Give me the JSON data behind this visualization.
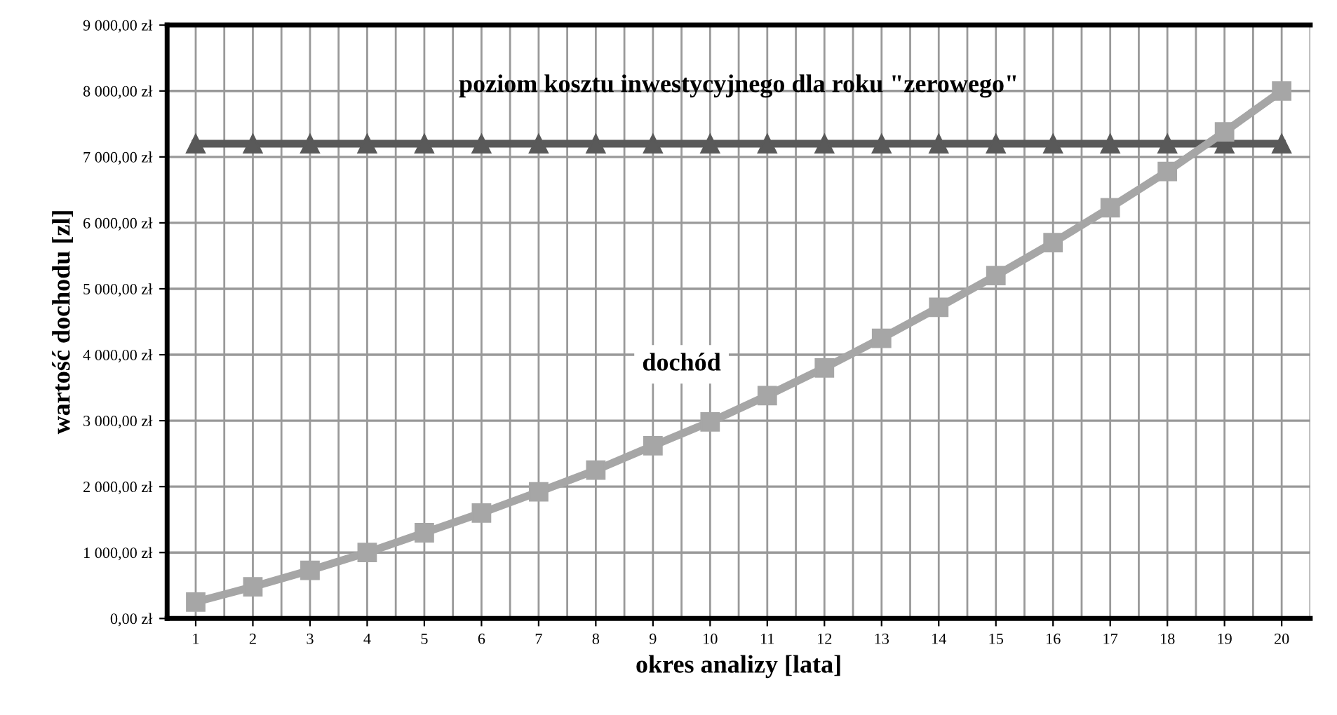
{
  "chart_data": {
    "type": "line",
    "xlabel": "okres analizy [lata]",
    "ylabel": "wartość dochodu [zl]",
    "categories": [
      "1",
      "2",
      "3",
      "4",
      "5",
      "6",
      "7",
      "8",
      "9",
      "10",
      "11",
      "12",
      "13",
      "14",
      "15",
      "16",
      "17",
      "18",
      "19",
      "20"
    ],
    "series": [
      {
        "name": "poziom kosztu inwestycyjnego dla roku \"zerowego\"",
        "color": "#595959",
        "marker": "triangle",
        "values": [
          7200,
          7200,
          7200,
          7200,
          7200,
          7200,
          7200,
          7200,
          7200,
          7200,
          7200,
          7200,
          7200,
          7200,
          7200,
          7200,
          7200,
          7200,
          7200,
          7200
        ]
      },
      {
        "name": "dochód",
        "color": "#a6a6a6",
        "marker": "square",
        "values": [
          250,
          480,
          730,
          1000,
          1300,
          1600,
          1920,
          2250,
          2620,
          2980,
          3380,
          3800,
          4250,
          4720,
          5200,
          5700,
          6230,
          6780,
          7380,
          8000
        ]
      }
    ],
    "ylim": [
      0,
      9000
    ],
    "yticks": [
      {
        "value": 0,
        "label": "0,00 zł"
      },
      {
        "value": 1000,
        "label": "1 000,00 zł"
      },
      {
        "value": 2000,
        "label": "2 000,00 zł"
      },
      {
        "value": 3000,
        "label": "3 000,00 zł"
      },
      {
        "value": 4000,
        "label": "4 000,00 zł"
      },
      {
        "value": 5000,
        "label": "5 000,00 zł"
      },
      {
        "value": 6000,
        "label": "6 000,00 zł"
      },
      {
        "value": 7000,
        "label": "7 000,00 zł"
      },
      {
        "value": 8000,
        "label": "8 000,00 zł"
      },
      {
        "value": 9000,
        "label": "9 000,00 zł"
      }
    ],
    "grid": true,
    "legend": false,
    "line_style": "solid"
  }
}
